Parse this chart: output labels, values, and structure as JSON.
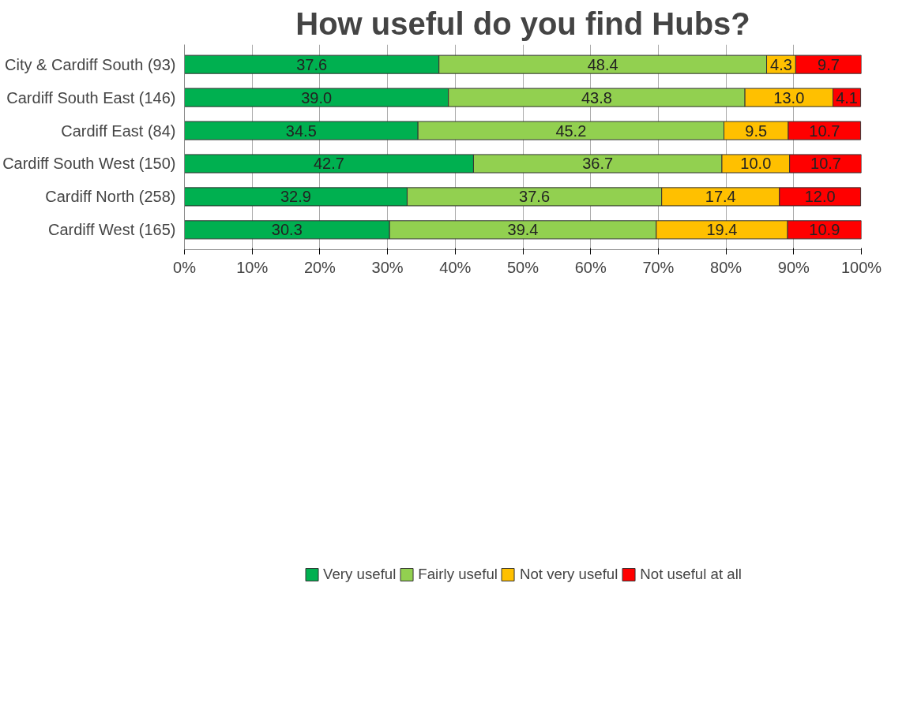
{
  "chart_data": {
    "type": "bar",
    "orientation": "horizontal",
    "stacked": true,
    "title": "How useful do you find Hubs?",
    "categories": [
      "City & Cardiff South (93)",
      "Cardiff South East (146)",
      "Cardiff East (84)",
      "Cardiff South West (150)",
      "Cardiff North (258)",
      "Cardiff West (165)"
    ],
    "series": [
      {
        "name": "Very useful",
        "color": "#00b050",
        "values": [
          37.6,
          39.0,
          34.5,
          42.7,
          32.9,
          30.3
        ],
        "value_labels": [
          "37.6",
          "39.0",
          "34.5",
          "42.7",
          "32.9",
          "30.3"
        ]
      },
      {
        "name": "Fairly useful",
        "color": "#92d050",
        "values": [
          48.4,
          43.8,
          45.2,
          36.7,
          37.6,
          39.4
        ],
        "value_labels": [
          "48.4",
          "43.8",
          "45.2",
          "36.7",
          "37.6",
          "39.4"
        ]
      },
      {
        "name": "Not very useful",
        "color": "#ffc000",
        "values": [
          4.3,
          13.0,
          9.5,
          10.0,
          17.4,
          19.4
        ],
        "value_labels": [
          "4.3",
          "13.0",
          "9.5",
          "10.0",
          "17.4",
          "19.4"
        ]
      },
      {
        "name": "Not useful at all",
        "color": "#ff0000",
        "values": [
          9.7,
          4.1,
          10.7,
          10.7,
          12.0,
          10.9
        ],
        "value_labels": [
          "9.7",
          "4.1",
          "10.7",
          "10.7",
          "12.0",
          "10.9"
        ]
      }
    ],
    "xlim": [
      0,
      100
    ],
    "xticks": [
      {
        "value": 0,
        "label": "0%"
      },
      {
        "value": 10,
        "label": "10%"
      },
      {
        "value": 20,
        "label": "20%"
      },
      {
        "value": 30,
        "label": "30%"
      },
      {
        "value": 40,
        "label": "40%"
      },
      {
        "value": 50,
        "label": "50%"
      },
      {
        "value": 60,
        "label": "60%"
      },
      {
        "value": 70,
        "label": "70%"
      },
      {
        "value": 80,
        "label": "80%"
      },
      {
        "value": 90,
        "label": "90%"
      },
      {
        "value": 100,
        "label": "100%"
      }
    ],
    "grid": "x",
    "legend": "bottom"
  }
}
